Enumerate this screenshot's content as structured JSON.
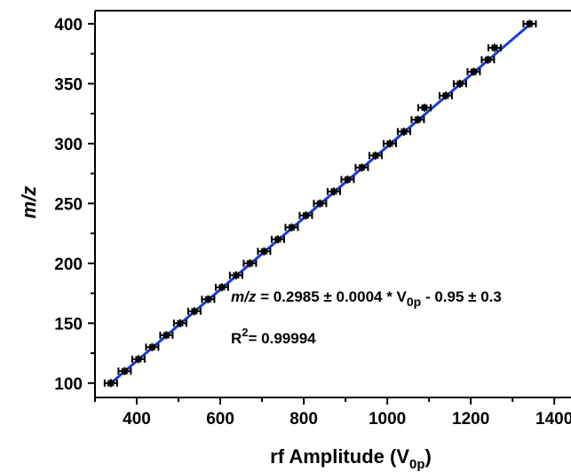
{
  "chart_data": {
    "type": "scatter",
    "xlabel_main": "rf Amplitude (V",
    "xlabel_sub": "0p",
    "xlabel_close": ")",
    "ylabel": "m/z",
    "xlim": [
      300,
      1440
    ],
    "ylim": [
      88,
      411
    ],
    "x_ticks": [
      "400",
      "600",
      "800",
      "1000",
      "1200",
      "1400"
    ],
    "x_tick_values": [
      400,
      600,
      800,
      1000,
      1200,
      1400
    ],
    "y_ticks": [
      "100",
      "150",
      "200",
      "250",
      "300",
      "350",
      "400"
    ],
    "y_tick_values": [
      100,
      150,
      200,
      250,
      300,
      350,
      400
    ],
    "series": [
      {
        "x": [
          338,
          371,
          404,
          437,
          471,
          504,
          538,
          571,
          604,
          638,
          671,
          705,
          738,
          771,
          805,
          839,
          872,
          905,
          939,
          972,
          1006,
          1040,
          1073,
          1089,
          1140,
          1174,
          1207,
          1241,
          1257,
          1341
        ],
        "y": [
          100,
          110,
          120,
          130,
          140,
          150,
          160,
          170,
          180,
          190,
          200,
          210,
          220,
          230,
          240,
          250,
          260,
          270,
          280,
          290,
          300,
          310,
          320,
          330,
          340,
          350,
          360,
          370,
          380,
          400
        ],
        "color": "#000000"
      }
    ],
    "fit_line": {
      "slope": 0.2985,
      "intercept": -0.95,
      "color": "#1a3dcc"
    },
    "annotations": {
      "eq_mz": "m/z",
      "eq_main": " = 0.2985 ± 0.0004  * V",
      "eq_sub": "0p",
      "eq_tail": " - 0.95 ± 0.3",
      "r2_prefix": "R",
      "r2_sup": "2",
      "r2_value": "= 0.99994"
    }
  }
}
